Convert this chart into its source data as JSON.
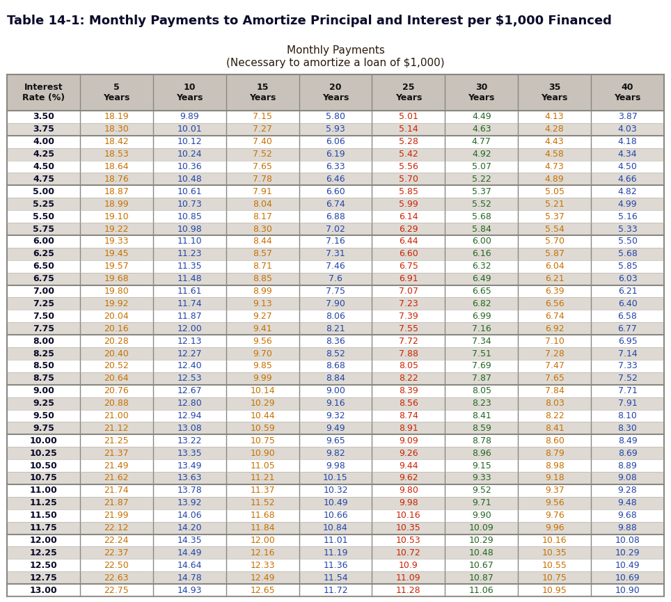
{
  "title": "Table 14-1: Monthly Payments to Amortize Principal and Interest per $1,000 Financed",
  "subtitle1": "Monthly Payments",
  "subtitle2": "(Necessary to amortize a loan of $1,000)",
  "col_headers": [
    "Interest\nRate (%)",
    "5\nYears",
    "10\nYears",
    "15\nYears",
    "20\nYears",
    "25\nYears",
    "30\nYears",
    "35\nYears",
    "40\nYears"
  ],
  "rows": [
    [
      "3.50",
      "18.19",
      "9.89",
      "7.15",
      "5.80",
      "5.01",
      "4.49",
      "4.13",
      "3.87"
    ],
    [
      "3.75",
      "18.30",
      "10.01",
      "7.27",
      "5.93",
      "5.14",
      "4.63",
      "4.28",
      "4.03"
    ],
    [
      "4.00",
      "18.42",
      "10.12",
      "7.40",
      "6.06",
      "5.28",
      "4.77",
      "4.43",
      "4.18"
    ],
    [
      "4.25",
      "18.53",
      "10.24",
      "7.52",
      "6.19",
      "5.42",
      "4.92",
      "4.58",
      "4.34"
    ],
    [
      "4.50",
      "18.64",
      "10.36",
      "7.65",
      "6.33",
      "5.56",
      "5.07",
      "4.73",
      "4.50"
    ],
    [
      "4.75",
      "18.76",
      "10.48",
      "7.78",
      "6.46",
      "5.70",
      "5.22",
      "4.89",
      "4.66"
    ],
    [
      "5.00",
      "18.87",
      "10.61",
      "7.91",
      "6.60",
      "5.85",
      "5.37",
      "5.05",
      "4.82"
    ],
    [
      "5.25",
      "18.99",
      "10.73",
      "8.04",
      "6.74",
      "5.99",
      "5.52",
      "5.21",
      "4.99"
    ],
    [
      "5.50",
      "19.10",
      "10.85",
      "8.17",
      "6.88",
      "6.14",
      "5.68",
      "5.37",
      "5.16"
    ],
    [
      "5.75",
      "19.22",
      "10.98",
      "8.30",
      "7.02",
      "6.29",
      "5.84",
      "5.54",
      "5.33"
    ],
    [
      "6.00",
      "19.33",
      "11.10",
      "8.44",
      "7.16",
      "6.44",
      "6.00",
      "5.70",
      "5.50"
    ],
    [
      "6.25",
      "19.45",
      "11.23",
      "8.57",
      "7.31",
      "6.60",
      "6.16",
      "5.87",
      "5.68"
    ],
    [
      "6.50",
      "19.57",
      "11.35",
      "8.71",
      "7.46",
      "6.75",
      "6.32",
      "6.04",
      "5.85"
    ],
    [
      "6.75",
      "19.68",
      "11.48",
      "8.85",
      "7.6",
      "6.91",
      "6.49",
      "6.21",
      "6.03"
    ],
    [
      "7.00",
      "19.80",
      "11.61",
      "8.99",
      "7.75",
      "7.07",
      "6.65",
      "6.39",
      "6.21"
    ],
    [
      "7.25",
      "19.92",
      "11.74",
      "9.13",
      "7.90",
      "7.23",
      "6.82",
      "6.56",
      "6.40"
    ],
    [
      "7.50",
      "20.04",
      "11.87",
      "9.27",
      "8.06",
      "7.39",
      "6.99",
      "6.74",
      "6.58"
    ],
    [
      "7.75",
      "20.16",
      "12.00",
      "9.41",
      "8.21",
      "7.55",
      "7.16",
      "6.92",
      "6.77"
    ],
    [
      "8.00",
      "20.28",
      "12.13",
      "9.56",
      "8.36",
      "7.72",
      "7.34",
      "7.10",
      "6.95"
    ],
    [
      "8.25",
      "20.40",
      "12.27",
      "9.70",
      "8.52",
      "7.88",
      "7.51",
      "7.28",
      "7.14"
    ],
    [
      "8.50",
      "20.52",
      "12.40",
      "9.85",
      "8.68",
      "8.05",
      "7.69",
      "7.47",
      "7.33"
    ],
    [
      "8.75",
      "20.64",
      "12.53",
      "9.99",
      "8.84",
      "8.22",
      "7.87",
      "7.65",
      "7.52"
    ],
    [
      "9.00",
      "20.76",
      "12.67",
      "10.14",
      "9.00",
      "8.39",
      "8.05",
      "7.84",
      "7.71"
    ],
    [
      "9.25",
      "20.88",
      "12.80",
      "10.29",
      "9.16",
      "8.56",
      "8.23",
      "8.03",
      "7.91"
    ],
    [
      "9.50",
      "21.00",
      "12.94",
      "10.44",
      "9.32",
      "8.74",
      "8.41",
      "8.22",
      "8.10"
    ],
    [
      "9.75",
      "21.12",
      "13.08",
      "10.59",
      "9.49",
      "8.91",
      "8.59",
      "8.41",
      "8.30"
    ],
    [
      "10.00",
      "21.25",
      "13.22",
      "10.75",
      "9.65",
      "9.09",
      "8.78",
      "8.60",
      "8.49"
    ],
    [
      "10.25",
      "21.37",
      "13.35",
      "10.90",
      "9.82",
      "9.26",
      "8.96",
      "8.79",
      "8.69"
    ],
    [
      "10.50",
      "21.49",
      "13.49",
      "11.05",
      "9.98",
      "9.44",
      "9.15",
      "8.98",
      "8.89"
    ],
    [
      "10.75",
      "21.62",
      "13.63",
      "11.21",
      "10.15",
      "9.62",
      "9.33",
      "9.18",
      "9.08"
    ],
    [
      "11.00",
      "21.74",
      "13.78",
      "11.37",
      "10.32",
      "9.80",
      "9.52",
      "9.37",
      "9.28"
    ],
    [
      "11.25",
      "21.87",
      "13.92",
      "11.52",
      "10.49",
      "9.98",
      "9.71",
      "9.56",
      "9.48"
    ],
    [
      "11.50",
      "21.99",
      "14.06",
      "11.68",
      "10.66",
      "10.16",
      "9.90",
      "9.76",
      "9.68"
    ],
    [
      "11.75",
      "22.12",
      "14.20",
      "11.84",
      "10.84",
      "10.35",
      "10.09",
      "9.96",
      "9.88"
    ],
    [
      "12.00",
      "22.24",
      "14.35",
      "12.00",
      "11.01",
      "10.53",
      "10.29",
      "10.16",
      "10.08"
    ],
    [
      "12.25",
      "22.37",
      "14.49",
      "12.16",
      "11.19",
      "10.72",
      "10.48",
      "10.35",
      "10.29"
    ],
    [
      "12.50",
      "22.50",
      "14.64",
      "12.33",
      "11.36",
      "10.9",
      "10.67",
      "10.55",
      "10.49"
    ],
    [
      "12.75",
      "22.63",
      "14.78",
      "12.49",
      "11.54",
      "11.09",
      "10.87",
      "10.75",
      "10.69"
    ],
    [
      "13.00",
      "22.75",
      "14.93",
      "12.65",
      "11.72",
      "11.28",
      "11.06",
      "10.95",
      "10.90"
    ]
  ],
  "group_starts": [
    0,
    2,
    6,
    10,
    14,
    18,
    22,
    26,
    30,
    34,
    38
  ],
  "fig_bg": "#ffffff",
  "header_bg": "#c8c2ba",
  "row_bg_light": "#ffffff",
  "row_bg_dark": "#dedad3",
  "border_color": "#888880",
  "thin_line_color": "#b0aca4",
  "title_color": "#0a0a2a",
  "subtitle_color": "#2a1a0a",
  "rate_col_color": "#0a0a2a",
  "data_col_colors": [
    "#c87000",
    "#2244aa",
    "#c87000",
    "#2244aa",
    "#cc2200",
    "#226622",
    "#c87000",
    "#2244aa"
  ]
}
